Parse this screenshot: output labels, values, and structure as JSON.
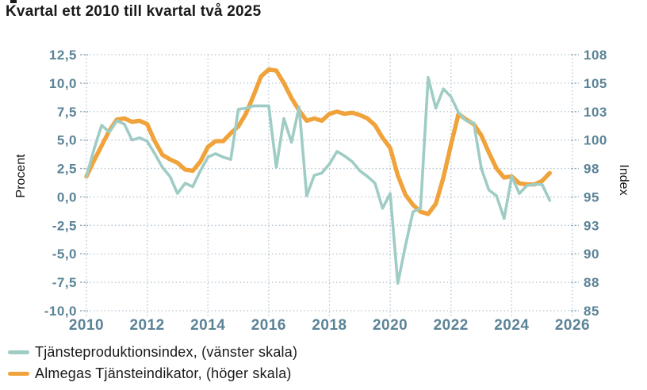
{
  "title": "Kvartal ett 2010 till kvartal två 2025",
  "axes": {
    "left_title": "Procent",
    "right_title": "Index",
    "left_tick_labels": [
      "12,5",
      "10,0",
      "7,5",
      "5,0",
      "2,5",
      "0,0",
      "-2,5",
      "-5,0",
      "-7,5",
      "-10,0"
    ],
    "right_tick_labels": [
      "108",
      "105",
      "103",
      "100",
      "98",
      "95",
      "93",
      "90",
      "88",
      "85"
    ],
    "x_tick_labels": [
      "2010",
      "2012",
      "2014",
      "2016",
      "2018",
      "2020",
      "2022",
      "2024",
      "2026"
    ]
  },
  "legend": {
    "items": [
      {
        "label": "Tjänsteproduktionsindex, (vänster skala)",
        "color": "#9fccc5"
      },
      {
        "label": "Almegas Tjänsteindikator, (höger skala)",
        "color": "#f0a23b"
      }
    ]
  },
  "colors": {
    "teal_line": "#9fccc5",
    "orange_line": "#f0a23b",
    "tick_label": "#5b8397",
    "gridline": "#b6c5d1",
    "text": "#1a1a1a"
  },
  "chart_data": {
    "type": "line",
    "title": "Kvartal ett 2010 till kvartal två 2025",
    "x_start": 2010.0,
    "x_step": 0.25,
    "x_end": 2025.25,
    "x_axis": {
      "range": [
        2010,
        2026
      ],
      "tick_step": 2,
      "tick_labels": [
        2010,
        2012,
        2014,
        2016,
        2018,
        2020,
        2022,
        2024,
        2026
      ]
    },
    "left_axis": {
      "label": "Procent",
      "range": [
        -10,
        12.5
      ],
      "tick_step": 2.5
    },
    "right_axis": {
      "label": "Index",
      "tick_labels": [
        108,
        105,
        103,
        100,
        98,
        95,
        93,
        90,
        88,
        85
      ],
      "index_offset_vs_left": 95
    },
    "grid": true,
    "legend_position": "bottom-left",
    "series": [
      {
        "name": "Tjänsteproduktionsindex, (vänster skala)",
        "axis": "left",
        "unit": "procent",
        "color": "#9fccc5",
        "values": [
          1.8,
          4.2,
          6.3,
          5.7,
          6.7,
          6.4,
          5.0,
          5.2,
          4.9,
          3.8,
          2.6,
          1.8,
          0.3,
          1.2,
          0.9,
          2.3,
          3.5,
          3.8,
          3.5,
          3.3,
          7.7,
          7.8,
          8.0,
          8.0,
          8.0,
          2.6,
          6.9,
          4.8,
          7.9,
          0.1,
          1.9,
          2.1,
          2.9,
          4.0,
          3.6,
          3.1,
          2.3,
          1.8,
          1.2,
          -1.0,
          0.3,
          -7.6,
          -4.3,
          -1.3,
          -1.0,
          10.5,
          7.8,
          9.5,
          8.8,
          7.4,
          6.7,
          6.5,
          2.5,
          0.6,
          0.1,
          -1.9,
          1.8,
          0.3,
          1.0,
          1.1,
          1.1,
          -0.3
        ]
      },
      {
        "name": "Almegas Tjänsteindikator, (höger skala)",
        "axis": "right",
        "unit": "index",
        "color": "#f0a23b",
        "values": [
          96.8,
          98.2,
          99.5,
          100.8,
          101.8,
          101.9,
          101.6,
          101.7,
          101.4,
          99.9,
          98.7,
          98.3,
          98.0,
          97.4,
          97.3,
          98.1,
          99.4,
          99.9,
          99.9,
          100.6,
          101.2,
          102.3,
          103.9,
          105.6,
          106.2,
          106.1,
          105.0,
          103.7,
          102.6,
          101.7,
          101.9,
          101.7,
          102.3,
          102.5,
          102.3,
          102.4,
          102.2,
          101.9,
          101.3,
          100.2,
          99.3,
          96.9,
          95.2,
          94.3,
          93.7,
          93.5,
          94.4,
          96.7,
          99.6,
          102.3,
          101.8,
          101.4,
          100.4,
          98.9,
          97.5,
          96.7,
          96.8,
          96.2,
          96.1,
          96.1,
          96.4,
          97.1
        ]
      }
    ]
  }
}
